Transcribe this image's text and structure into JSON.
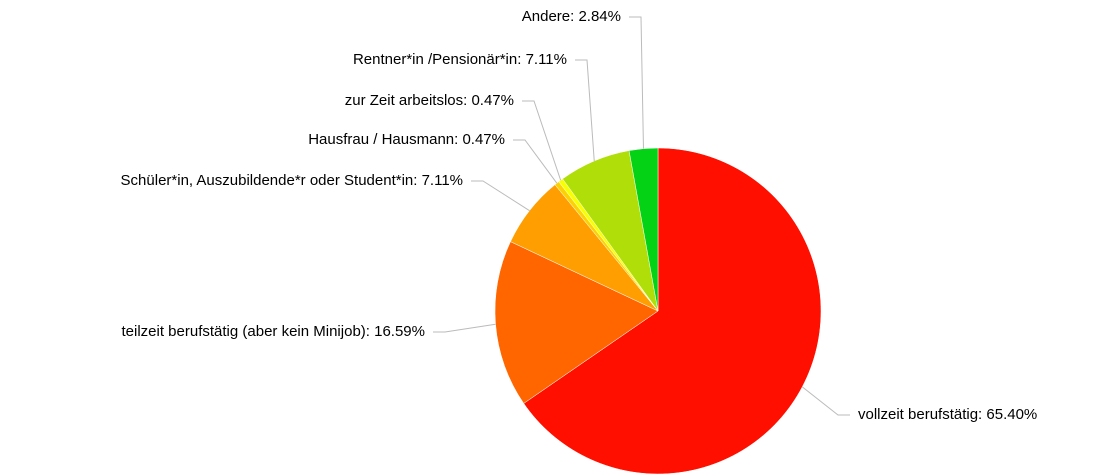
{
  "chart_data": {
    "type": "pie",
    "values": [
      65.4,
      16.59,
      7.11,
      0.47,
      0.47,
      7.11,
      2.84
    ],
    "value_labels": [
      "vollzeit berufstätig: 65.40%",
      "teilzeit berufstätig (aber kein Minijob): 16.59%",
      "Schüler*in, Auszubildende*r oder Student*in: 7.11%",
      "Hausfrau / Hausmann: 0.47%",
      "zur Zeit arbeitslos: 0.47%",
      "Rentner*in /Pensionär*in: 7.11%",
      "Andere: 2.84%"
    ],
    "colors": [
      "#FF0F00",
      "#FF6600",
      "#FF9E01",
      "#FCD202",
      "#F8FF01",
      "#B0DE09",
      "#04D215"
    ]
  }
}
